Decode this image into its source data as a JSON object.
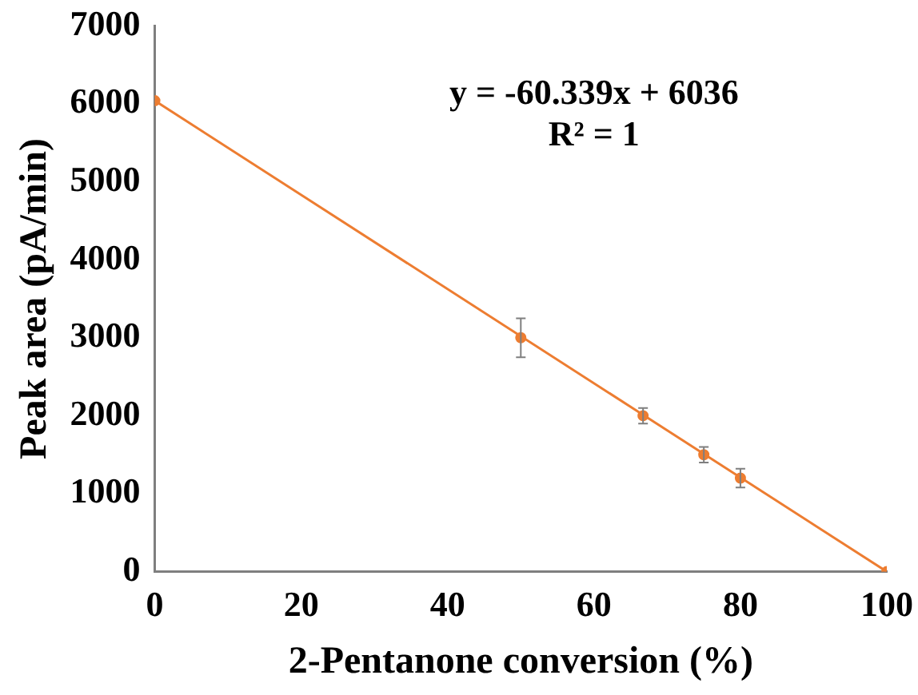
{
  "chart_data": {
    "type": "scatter",
    "xlabel": "2-Pentanone conversion (%)",
    "ylabel": "Peak area (pA/min)",
    "xlim": [
      0,
      100
    ],
    "xticks": [
      0,
      20,
      40,
      60,
      80,
      100
    ],
    "ylim": [
      0,
      7000
    ],
    "yticks": [
      0,
      1000,
      2000,
      3000,
      4000,
      5000,
      6000,
      7000
    ],
    "grid": false,
    "legend": false,
    "marker": "circle",
    "series": [
      {
        "color": "#ed7d31",
        "x": [
          0,
          50,
          66.7,
          75,
          80,
          100
        ],
        "values": [
          6040,
          3000,
          2000,
          1500,
          1200,
          0
        ],
        "errors": [
          null,
          250,
          100,
          100,
          120,
          null
        ]
      },
      {
        "type": "line",
        "color": "#ed7d31",
        "x": [
          0,
          100
        ],
        "values": [
          6040,
          0
        ],
        "line_style": "solid",
        "marker": "none"
      }
    ],
    "annotations": [
      "y = -60.339x + 6036",
      "R² = 1"
    ]
  }
}
